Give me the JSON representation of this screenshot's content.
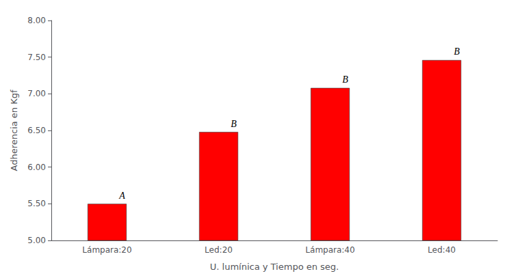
{
  "chart_data": {
    "type": "bar",
    "categories": [
      "Lámpara:20",
      "Led:20",
      "Lámpara:40",
      "Led:40"
    ],
    "values": [
      5.5,
      6.48,
      7.08,
      7.46
    ],
    "color": "#FF0000",
    "annotations": [
      "A",
      "B",
      "B",
      "B"
    ],
    "xlabel": "U. lumínica y Tiempo en seg.",
    "ylabel": "Adherencia en Kgf",
    "ylim": [
      5.0,
      8.0
    ],
    "yticks": [
      {
        "value": 5.0,
        "label": "5.00"
      },
      {
        "value": 5.5,
        "label": "5.50"
      },
      {
        "value": 6.0,
        "label": "6.00"
      },
      {
        "value": 6.5,
        "label": "6.50"
      },
      {
        "value": 7.0,
        "label": "7.00"
      },
      {
        "value": 7.5,
        "label": "7.50"
      },
      {
        "value": 8.0,
        "label": "8.00"
      }
    ],
    "grid": false
  }
}
